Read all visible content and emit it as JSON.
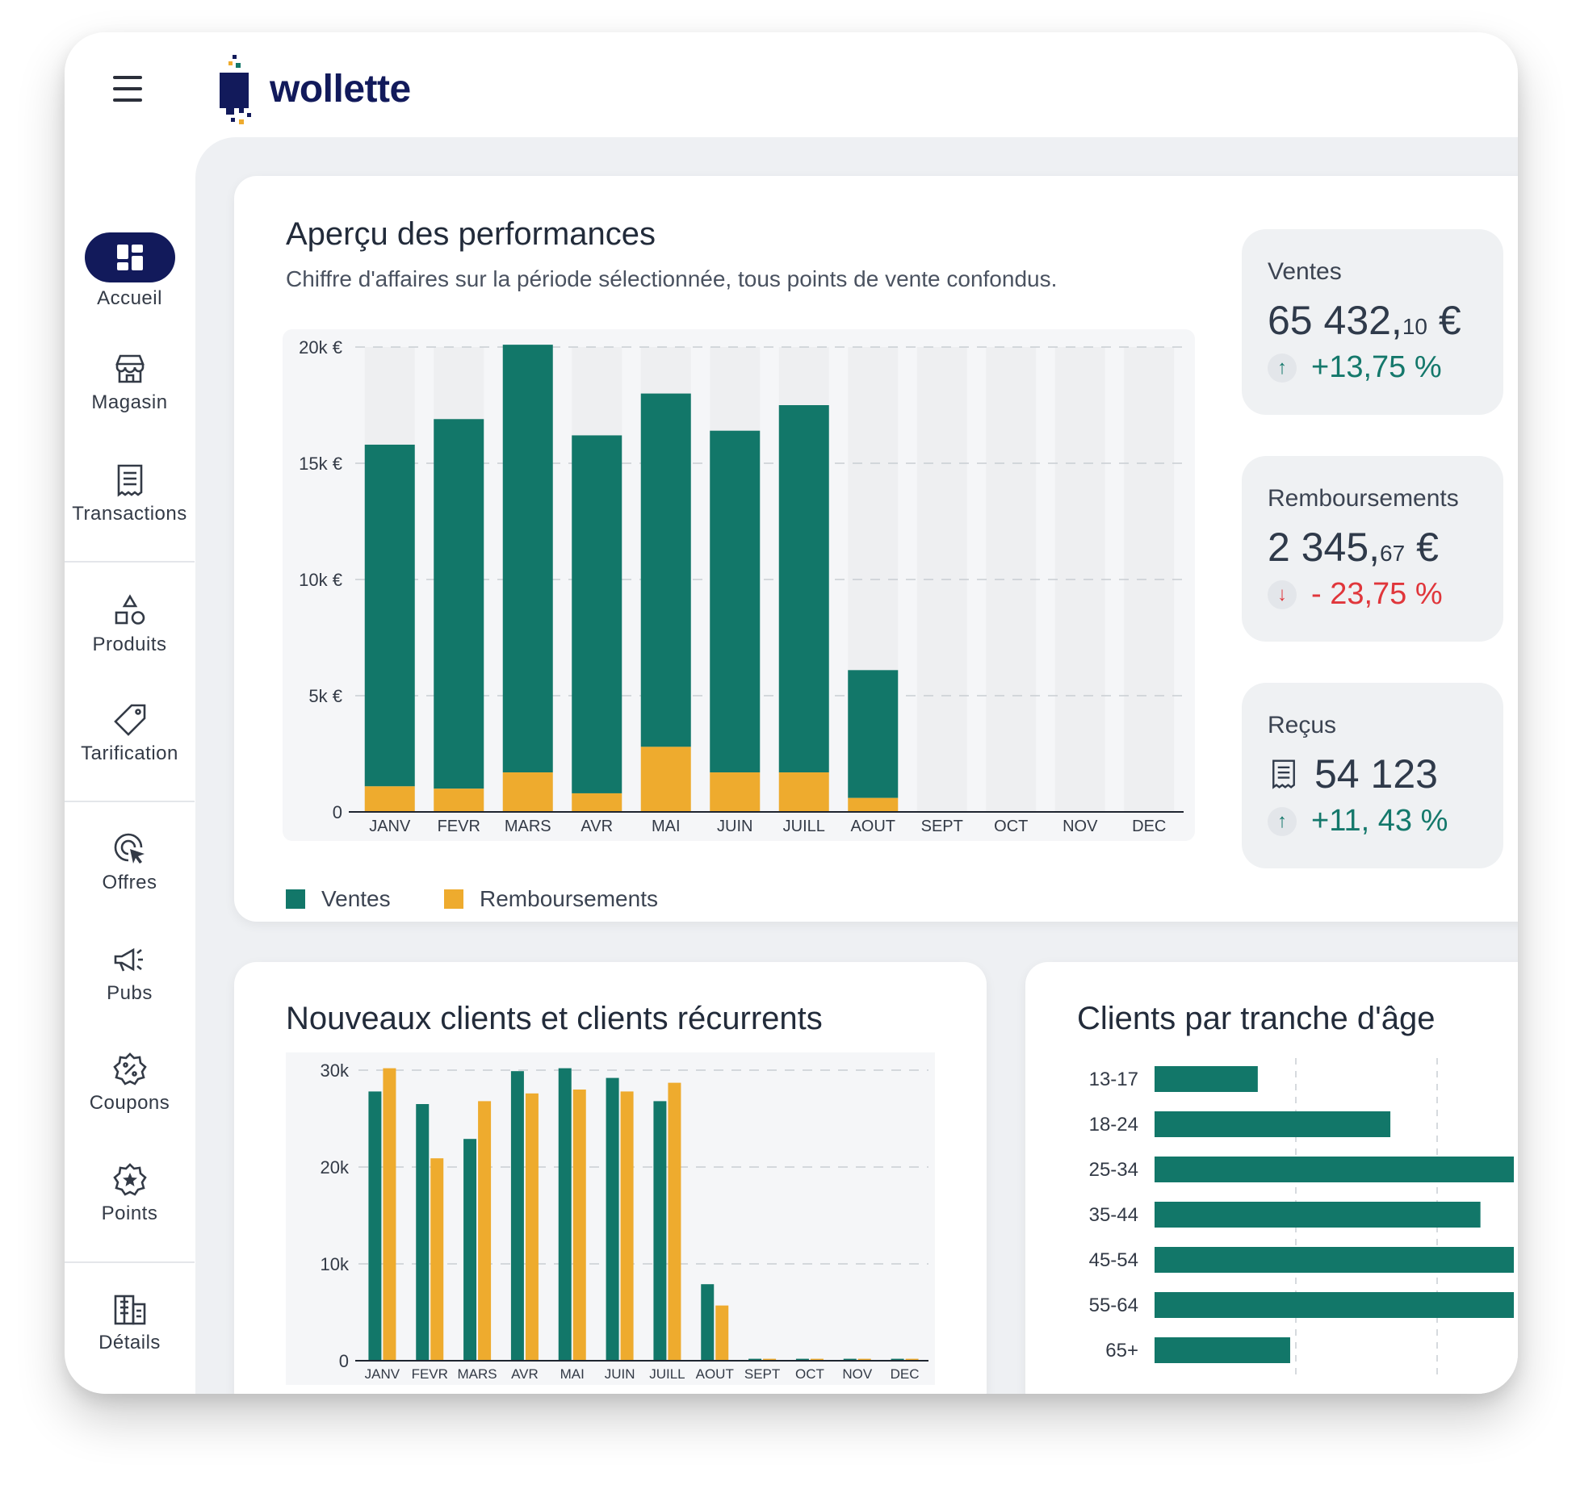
{
  "brand": {
    "name": "wollette"
  },
  "colors": {
    "accent": "#121a5b",
    "ventes": "#127769",
    "remboursements": "#eeab2e",
    "positive": "#14786b",
    "negative": "#e0363b"
  },
  "sidebar": {
    "items": [
      {
        "label": "Accueil",
        "icon": "dashboard-icon",
        "active": true
      },
      {
        "label": "Magasin",
        "icon": "store-icon"
      },
      {
        "label": "Transactions",
        "icon": "receipt-icon"
      },
      {
        "label": "Produits",
        "icon": "shapes-icon"
      },
      {
        "label": "Tarification",
        "icon": "price-tag-icon"
      },
      {
        "label": "Offres",
        "icon": "target-cursor-icon"
      },
      {
        "label": "Pubs",
        "icon": "megaphone-icon"
      },
      {
        "label": "Coupons",
        "icon": "percent-badge-icon"
      },
      {
        "label": "Points",
        "icon": "star-badge-icon"
      },
      {
        "label": "Détails",
        "icon": "building-icon"
      },
      {
        "label": "",
        "icon": "shop-front-icon"
      }
    ]
  },
  "performance": {
    "title": "Aperçu des performances",
    "subtitle": "Chiffre d'affaires sur la période sélectionnée, tous points de vente confondus.",
    "legend": [
      "Ventes",
      "Remboursements"
    ]
  },
  "kpis": [
    {
      "label": "Ventes",
      "value_main": "65 432,",
      "value_cents": "10",
      "currency": " €",
      "delta": "+13,75 %",
      "direction": "up"
    },
    {
      "label": "Remboursements",
      "value_main": "2 345,",
      "value_cents": "67",
      "currency": " €",
      "delta": "- 23,75 %",
      "direction": "down"
    },
    {
      "label": "Reçus",
      "value_main": "54 123",
      "value_cents": "",
      "currency": "",
      "delta": "+11, 43 %",
      "direction": "up",
      "icon": "receipt-icon"
    }
  ],
  "clients": {
    "title": "Nouveaux clients et clients récurrents"
  },
  "ages": {
    "title": "Clients par tranche d'âge"
  },
  "chart_data": [
    {
      "type": "bar",
      "stacked": true,
      "categories": [
        "JANV",
        "FEVR",
        "MARS",
        "AVR",
        "MAI",
        "JUIN",
        "JUILL",
        "AOUT",
        "SEPT",
        "OCT",
        "NOV",
        "DEC"
      ],
      "series": [
        {
          "name": "Ventes",
          "values": [
            14700,
            15900,
            18400,
            15400,
            15200,
            14700,
            15800,
            5500,
            0,
            0,
            0,
            0
          ]
        },
        {
          "name": "Remboursements",
          "values": [
            1100,
            1000,
            1700,
            800,
            2800,
            1700,
            1700,
            600,
            0,
            0,
            0,
            0
          ]
        }
      ],
      "yticks": [
        "0",
        "5k €",
        "10k €",
        "15k €",
        "20k €"
      ],
      "ylim": [
        0,
        20000
      ],
      "grid": true
    },
    {
      "type": "bar",
      "grouped": true,
      "categories": [
        "JANV",
        "FEVR",
        "MARS",
        "AVR",
        "MAI",
        "JUIN",
        "JUILL",
        "AOUT",
        "SEPT",
        "OCT",
        "NOV",
        "DEC"
      ],
      "series": [
        {
          "values": [
            27800,
            26500,
            22900,
            29900,
            30200,
            29200,
            26800,
            7900,
            200,
            200,
            200,
            200
          ]
        },
        {
          "values": [
            30200,
            20900,
            26800,
            27600,
            28000,
            27800,
            28700,
            5700,
            200,
            200,
            200,
            200
          ]
        }
      ],
      "yticks": [
        "0",
        "10k",
        "20k",
        "30k"
      ],
      "ylim": [
        0,
        30000
      ],
      "grid": true
    },
    {
      "type": "bar",
      "orientation": "horizontal",
      "categories": [
        "13-17",
        "18-24",
        "25-34",
        "35-44",
        "45-54",
        "55-64",
        "65+"
      ],
      "values": [
        102,
        233,
        355,
        322,
        355,
        355,
        134
      ],
      "grid": true
    }
  ]
}
